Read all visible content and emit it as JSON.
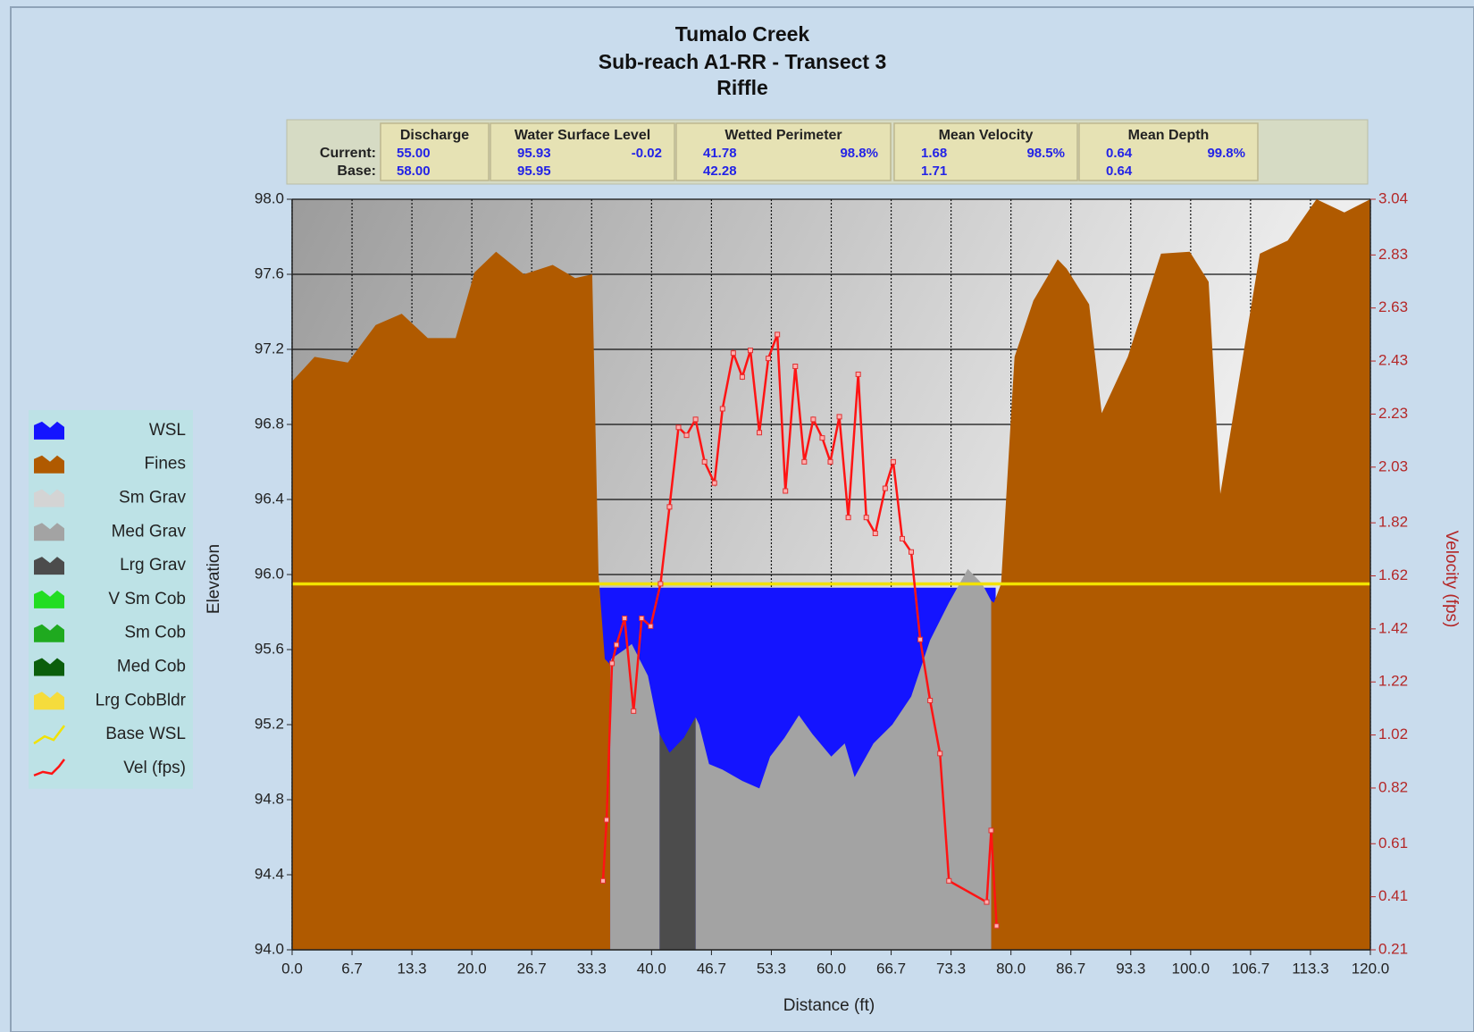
{
  "chart_data": {
    "type": "area",
    "title": "Tumalo Creek",
    "subtitle": [
      "Sub-reach A1-RR - Transect  3",
      "Riffle"
    ],
    "xlabel": "Distance (ft)",
    "ylabel": "Elevation",
    "y2label": "Velocity (fps)",
    "summary": {
      "row_labels": [
        "Current:",
        "Base:"
      ],
      "columns": [
        {
          "name": "Discharge",
          "current": "55.00",
          "base": "58.00"
        },
        {
          "name": "Water Surface Level",
          "current": "95.93",
          "change": "-0.02",
          "base": "95.95"
        },
        {
          "name": "Wetted Perimeter",
          "current": "41.78",
          "change": "98.8%",
          "base": "42.28"
        },
        {
          "name": "Mean Velocity",
          "current": "1.68",
          "change": "98.5%",
          "base": "1.71"
        },
        {
          "name": "Mean Depth",
          "current": "0.64",
          "change": "99.8%",
          "base": "0.64"
        }
      ]
    },
    "xlim": [
      0,
      120
    ],
    "xticks": [
      {
        "value": 0,
        "label": "0.0"
      },
      {
        "value": 6.667,
        "label": "6.7"
      },
      {
        "value": 13.333,
        "label": "13.3"
      },
      {
        "value": 20,
        "label": "20.0"
      },
      {
        "value": 26.667,
        "label": "26.7"
      },
      {
        "value": 33.333,
        "label": "33.3"
      },
      {
        "value": 40,
        "label": "40.0"
      },
      {
        "value": 46.667,
        "label": "46.7"
      },
      {
        "value": 53.333,
        "label": "53.3"
      },
      {
        "value": 60,
        "label": "60.0"
      },
      {
        "value": 66.667,
        "label": "66.7"
      },
      {
        "value": 73.333,
        "label": "73.3"
      },
      {
        "value": 80,
        "label": "80.0"
      },
      {
        "value": 86.667,
        "label": "86.7"
      },
      {
        "value": 93.333,
        "label": "93.3"
      },
      {
        "value": 100,
        "label": "100.0"
      },
      {
        "value": 106.667,
        "label": "106.7"
      },
      {
        "value": 113.333,
        "label": "113.3"
      },
      {
        "value": 120,
        "label": "120.0"
      }
    ],
    "ylim": [
      94,
      98
    ],
    "yticks": [
      {
        "value": 94,
        "label": "94.0"
      },
      94.4,
      94.8,
      95.2,
      95.6,
      {
        "value": 96,
        "label": "96.0"
      },
      96.4,
      96.8,
      97.2,
      97.6,
      {
        "value": 98,
        "label": "98.0"
      }
    ],
    "y2lim": [
      0.21,
      3.04
    ],
    "y2ticks": [
      0.21,
      0.41,
      0.61,
      0.82,
      1.02,
      1.22,
      1.42,
      1.62,
      1.82,
      2.03,
      2.23,
      2.43,
      2.63,
      2.83,
      3.04
    ],
    "grid": true,
    "legend": "left",
    "series": [
      {
        "name": "WSL",
        "color": "#1414ff",
        "mark": "area",
        "x": [
          34.0,
          78.3
        ],
        "values": [
          95.93,
          95.93
        ]
      },
      {
        "name": "Fines",
        "color": "#b05a00",
        "mark": "area",
        "x": [
          0,
          2.5,
          6.2,
          9.3,
          12.2,
          15.1,
          18.2,
          20.3,
          22.7,
          25.8,
          29.0,
          31.5,
          33.4,
          34.1,
          34.8,
          35.4,
          null,
          77.8,
          78.1,
          78.9,
          80.4,
          82.5,
          85.2,
          86.2,
          88.7,
          90.1,
          93.0,
          96.7,
          99.9,
          102.0,
          103.3,
          107.7,
          110.8,
          114.0,
          117.1,
          120
        ],
        "values": [
          97.03,
          97.16,
          97.13,
          97.33,
          97.39,
          97.26,
          97.26,
          97.61,
          97.72,
          97.6,
          97.65,
          97.58,
          97.6,
          96.0,
          95.55,
          95.52,
          null,
          95.86,
          95.85,
          95.95,
          97.16,
          97.46,
          97.68,
          97.63,
          97.44,
          96.86,
          97.16,
          97.71,
          97.72,
          97.56,
          96.43,
          97.71,
          97.78,
          98.0,
          97.93,
          98.0
        ]
      },
      {
        "name": "Sm Grav",
        "color": "#d4d4d4",
        "mark": "area",
        "x": [],
        "values": []
      },
      {
        "name": "Med Grav",
        "color": "#a3a3a3",
        "mark": "area",
        "x": [
          35.4,
          35.5,
          37.0,
          37.8,
          39.6,
          40.9,
          null,
          44.9,
          45.3,
          46.4,
          47.9,
          50.1,
          52.0,
          53.2,
          54.8,
          56.4,
          57.9,
          60.0,
          61.5,
          62.6,
          64.7,
          66.8,
          68.9,
          71.0,
          73.1,
          75.2,
          76.8,
          77.8
        ],
        "values": [
          95.52,
          95.55,
          95.6,
          95.63,
          95.46,
          95.15,
          null,
          95.24,
          95.2,
          94.99,
          94.96,
          94.9,
          94.86,
          95.03,
          95.13,
          95.25,
          95.15,
          95.03,
          95.1,
          94.92,
          95.1,
          95.2,
          95.35,
          95.65,
          95.85,
          96.03,
          95.95,
          95.86
        ]
      },
      {
        "name": "Lrg Grav",
        "color": "#4c4c4c",
        "mark": "area",
        "x": [
          40.9,
          42.0,
          43.6,
          44.9
        ],
        "values": [
          95.15,
          95.05,
          95.13,
          95.24
        ]
      },
      {
        "name": "V Sm Cob",
        "color": "#22dd22",
        "mark": "area",
        "x": [],
        "values": []
      },
      {
        "name": "Sm Cob",
        "color": "#1faa1f",
        "mark": "area",
        "x": [],
        "values": []
      },
      {
        "name": "Med Cob",
        "color": "#0b5e0b",
        "mark": "area",
        "x": [],
        "values": []
      },
      {
        "name": "Lrg CobBldr",
        "color": "#f5dc3c",
        "mark": "area",
        "x": [],
        "values": []
      },
      {
        "name": "Base WSL",
        "color": "#f2e200",
        "mark": "line",
        "x": [
          0,
          120
        ],
        "values": [
          95.95,
          95.95
        ]
      },
      {
        "name": "Vel (fps)",
        "color": "#ff1414",
        "mark": "line",
        "axis": "y2",
        "markers": true,
        "x": [
          34.6,
          35.0,
          35.6,
          36.1,
          37.0,
          38.0,
          38.9,
          39.9,
          41.0,
          42.0,
          43.0,
          43.9,
          44.9,
          45.9,
          47.0,
          47.9,
          49.1,
          50.1,
          51.0,
          52.0,
          53.0,
          54.0,
          54.9,
          56.0,
          57.0,
          58.0,
          59.0,
          59.9,
          60.9,
          61.9,
          63.0,
          63.9,
          64.9,
          66.0,
          66.9,
          67.9,
          68.9,
          69.9,
          71.0,
          72.1,
          73.1,
          77.3,
          77.8,
          78.4
        ],
        "values": [
          0.47,
          0.7,
          1.29,
          1.36,
          1.46,
          1.11,
          1.46,
          1.43,
          1.59,
          1.88,
          2.18,
          2.15,
          2.21,
          2.05,
          1.97,
          2.25,
          2.46,
          2.37,
          2.47,
          2.16,
          2.44,
          2.53,
          1.94,
          2.41,
          2.05,
          2.21,
          2.14,
          2.05,
          2.22,
          1.84,
          2.38,
          1.84,
          1.78,
          1.95,
          2.05,
          1.76,
          1.71,
          1.38,
          1.15,
          0.95,
          0.47,
          0.39,
          0.66,
          0.3
        ]
      }
    ]
  }
}
